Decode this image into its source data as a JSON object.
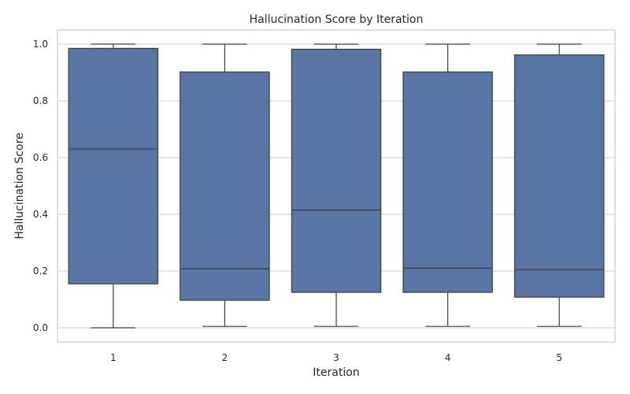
{
  "chart_data": {
    "type": "box",
    "title": "Hallucination Score by Iteration",
    "xlabel": "Iteration",
    "ylabel": "Hallucination Score",
    "categories": [
      "1",
      "2",
      "3",
      "4",
      "5"
    ],
    "boxes": [
      {
        "category": "1",
        "min": 0.0,
        "q1": 0.155,
        "median": 0.63,
        "q3": 0.985,
        "max": 1.0
      },
      {
        "category": "2",
        "min": 0.005,
        "q1": 0.097,
        "median": 0.208,
        "q3": 0.902,
        "max": 1.0
      },
      {
        "category": "3",
        "min": 0.005,
        "q1": 0.125,
        "median": 0.415,
        "q3": 0.982,
        "max": 1.0
      },
      {
        "category": "4",
        "min": 0.005,
        "q1": 0.125,
        "median": 0.21,
        "q3": 0.902,
        "max": 1.0
      },
      {
        "category": "5",
        "min": 0.005,
        "q1": 0.108,
        "median": 0.205,
        "q3": 0.962,
        "max": 1.0
      }
    ],
    "ylim": [
      -0.05,
      1.05
    ],
    "yticks": [
      "0.0",
      "0.2",
      "0.4",
      "0.6",
      "0.8",
      "1.0"
    ],
    "grid": "horizontal",
    "colors": {
      "box_fill": "#5875a4",
      "line": "#3d3d3d",
      "grid": "#cccccc"
    }
  }
}
